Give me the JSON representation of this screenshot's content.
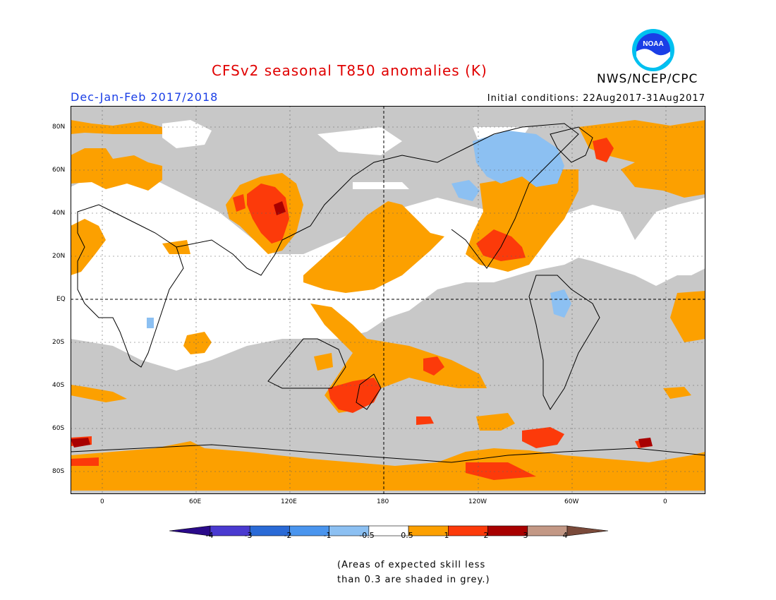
{
  "title": "CFSv2 seasonal T850 anomalies (K)",
  "org": "NWS/NCEP/CPC",
  "logo_text": "NOAA",
  "season": "Dec-Jan-Feb 2017/2018",
  "initial_conditions": "Initial conditions: 22Aug2017-31Aug2017",
  "lat_labels": [
    "80N",
    "60N",
    "40N",
    "20N",
    "EQ",
    "20S",
    "40S",
    "60S",
    "80S"
  ],
  "lon_labels": [
    "0",
    "60E",
    "120E",
    "180",
    "120W",
    "60W",
    "0"
  ],
  "colorbar": {
    "labels": [
      "-4",
      "-3",
      "-2",
      "-1",
      "-0.5",
      "0.5",
      "1",
      "2",
      "3",
      "4"
    ],
    "colors": [
      "#2a0a8a",
      "#4a3ad0",
      "#2a6ad6",
      "#4a95ee",
      "#8cc0f2",
      "#ffffff",
      "#fca000",
      "#fc3a0a",
      "#a80000",
      "#c39885",
      "#7a4a3a"
    ]
  },
  "note_line1": "(Areas of expected skill less",
  "note_line2": "than 0.3 are shaded in grey.)"
}
